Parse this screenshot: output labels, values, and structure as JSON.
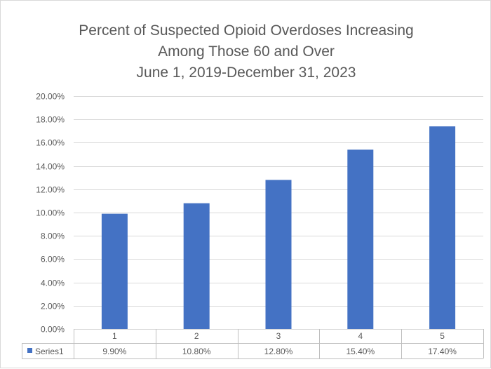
{
  "chart_data": {
    "type": "bar",
    "title_lines": [
      "Percent of Suspected Opioid Overdoses Increasing",
      "Among Those 60 and Over",
      "June 1, 2019-December 31, 2023"
    ],
    "categories": [
      "1",
      "2",
      "3",
      "4",
      "5"
    ],
    "series": [
      {
        "name": "Series1",
        "values": [
          9.9,
          10.8,
          12.8,
          15.4,
          17.4
        ],
        "value_labels": [
          "9.90%",
          "10.80%",
          "12.80%",
          "15.40%",
          "17.40%"
        ],
        "color": "#4472c4"
      }
    ],
    "ylim": [
      0,
      20
    ],
    "yticks": [
      0,
      2,
      4,
      6,
      8,
      10,
      12,
      14,
      16,
      18,
      20
    ],
    "ytick_labels": [
      "0.00%",
      "2.00%",
      "4.00%",
      "6.00%",
      "8.00%",
      "10.00%",
      "12.00%",
      "14.00%",
      "16.00%",
      "18.00%",
      "20.00%"
    ],
    "grid": true,
    "legend": "data-table-below",
    "xlabel": "",
    "ylabel": ""
  }
}
